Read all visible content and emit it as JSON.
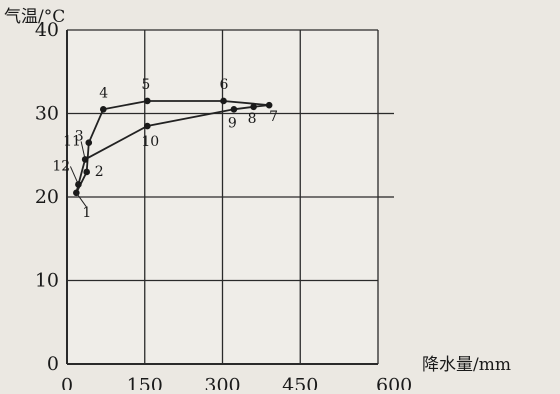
{
  "chart_data": {
    "type": "line",
    "title": "",
    "xlabel": "降水量/mm",
    "ylabel": "气温/°C",
    "xlim": [
      0,
      600
    ],
    "ylim": [
      0,
      40
    ],
    "x_ticks": [
      "0",
      "150",
      "300",
      "450",
      "600"
    ],
    "y_ticks": [
      "0",
      "10",
      "20",
      "30",
      "40"
    ],
    "grid": true,
    "series": [
      {
        "points": [
          {
            "label": "1",
            "x": 18,
            "y": 20.5
          },
          {
            "label": "2",
            "x": 38,
            "y": 23
          },
          {
            "label": "3",
            "x": 42,
            "y": 26.5
          },
          {
            "label": "4",
            "x": 70,
            "y": 30.5
          },
          {
            "label": "5",
            "x": 155,
            "y": 31.5
          },
          {
            "label": "6",
            "x": 302,
            "y": 31.5
          },
          {
            "label": "7",
            "x": 390,
            "y": 31
          }
        ]
      },
      {
        "points": [
          {
            "label": "1",
            "x": 18,
            "y": 20.5
          },
          {
            "label": "12",
            "x": 22,
            "y": 21.5
          },
          {
            "label": "11",
            "x": 35,
            "y": 24.5
          },
          {
            "label": "10",
            "x": 155,
            "y": 28.5
          },
          {
            "label": "9",
            "x": 322,
            "y": 30.5
          },
          {
            "label": "8",
            "x": 360,
            "y": 30.8
          },
          {
            "label": "7",
            "x": 390,
            "y": 31
          }
        ]
      }
    ]
  }
}
